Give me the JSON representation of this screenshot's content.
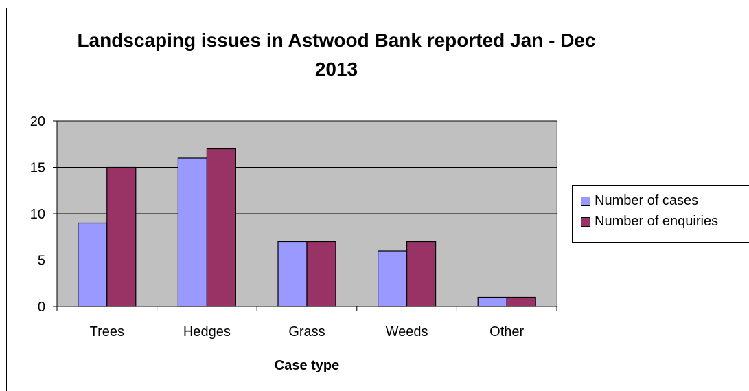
{
  "chart_data": {
    "type": "bar",
    "title": "Landscaping issues in Astwood Bank reported Jan - Dec 2013",
    "xlabel": "Case type",
    "ylabel": "",
    "categories": [
      "Trees",
      "Hedges",
      "Grass",
      "Weeds",
      "Other"
    ],
    "series": [
      {
        "name": "Number of cases",
        "values": [
          9,
          16,
          7,
          6,
          1
        ],
        "color": "#9999ff"
      },
      {
        "name": "Number of enquiries",
        "values": [
          15,
          17,
          7,
          7,
          1
        ],
        "color": "#993366"
      }
    ],
    "ylim": [
      0,
      20
    ],
    "yticks": [
      0,
      5,
      10,
      15,
      20
    ],
    "grid": true,
    "plot_background": "#c0c0c0",
    "legend_position": "right"
  }
}
